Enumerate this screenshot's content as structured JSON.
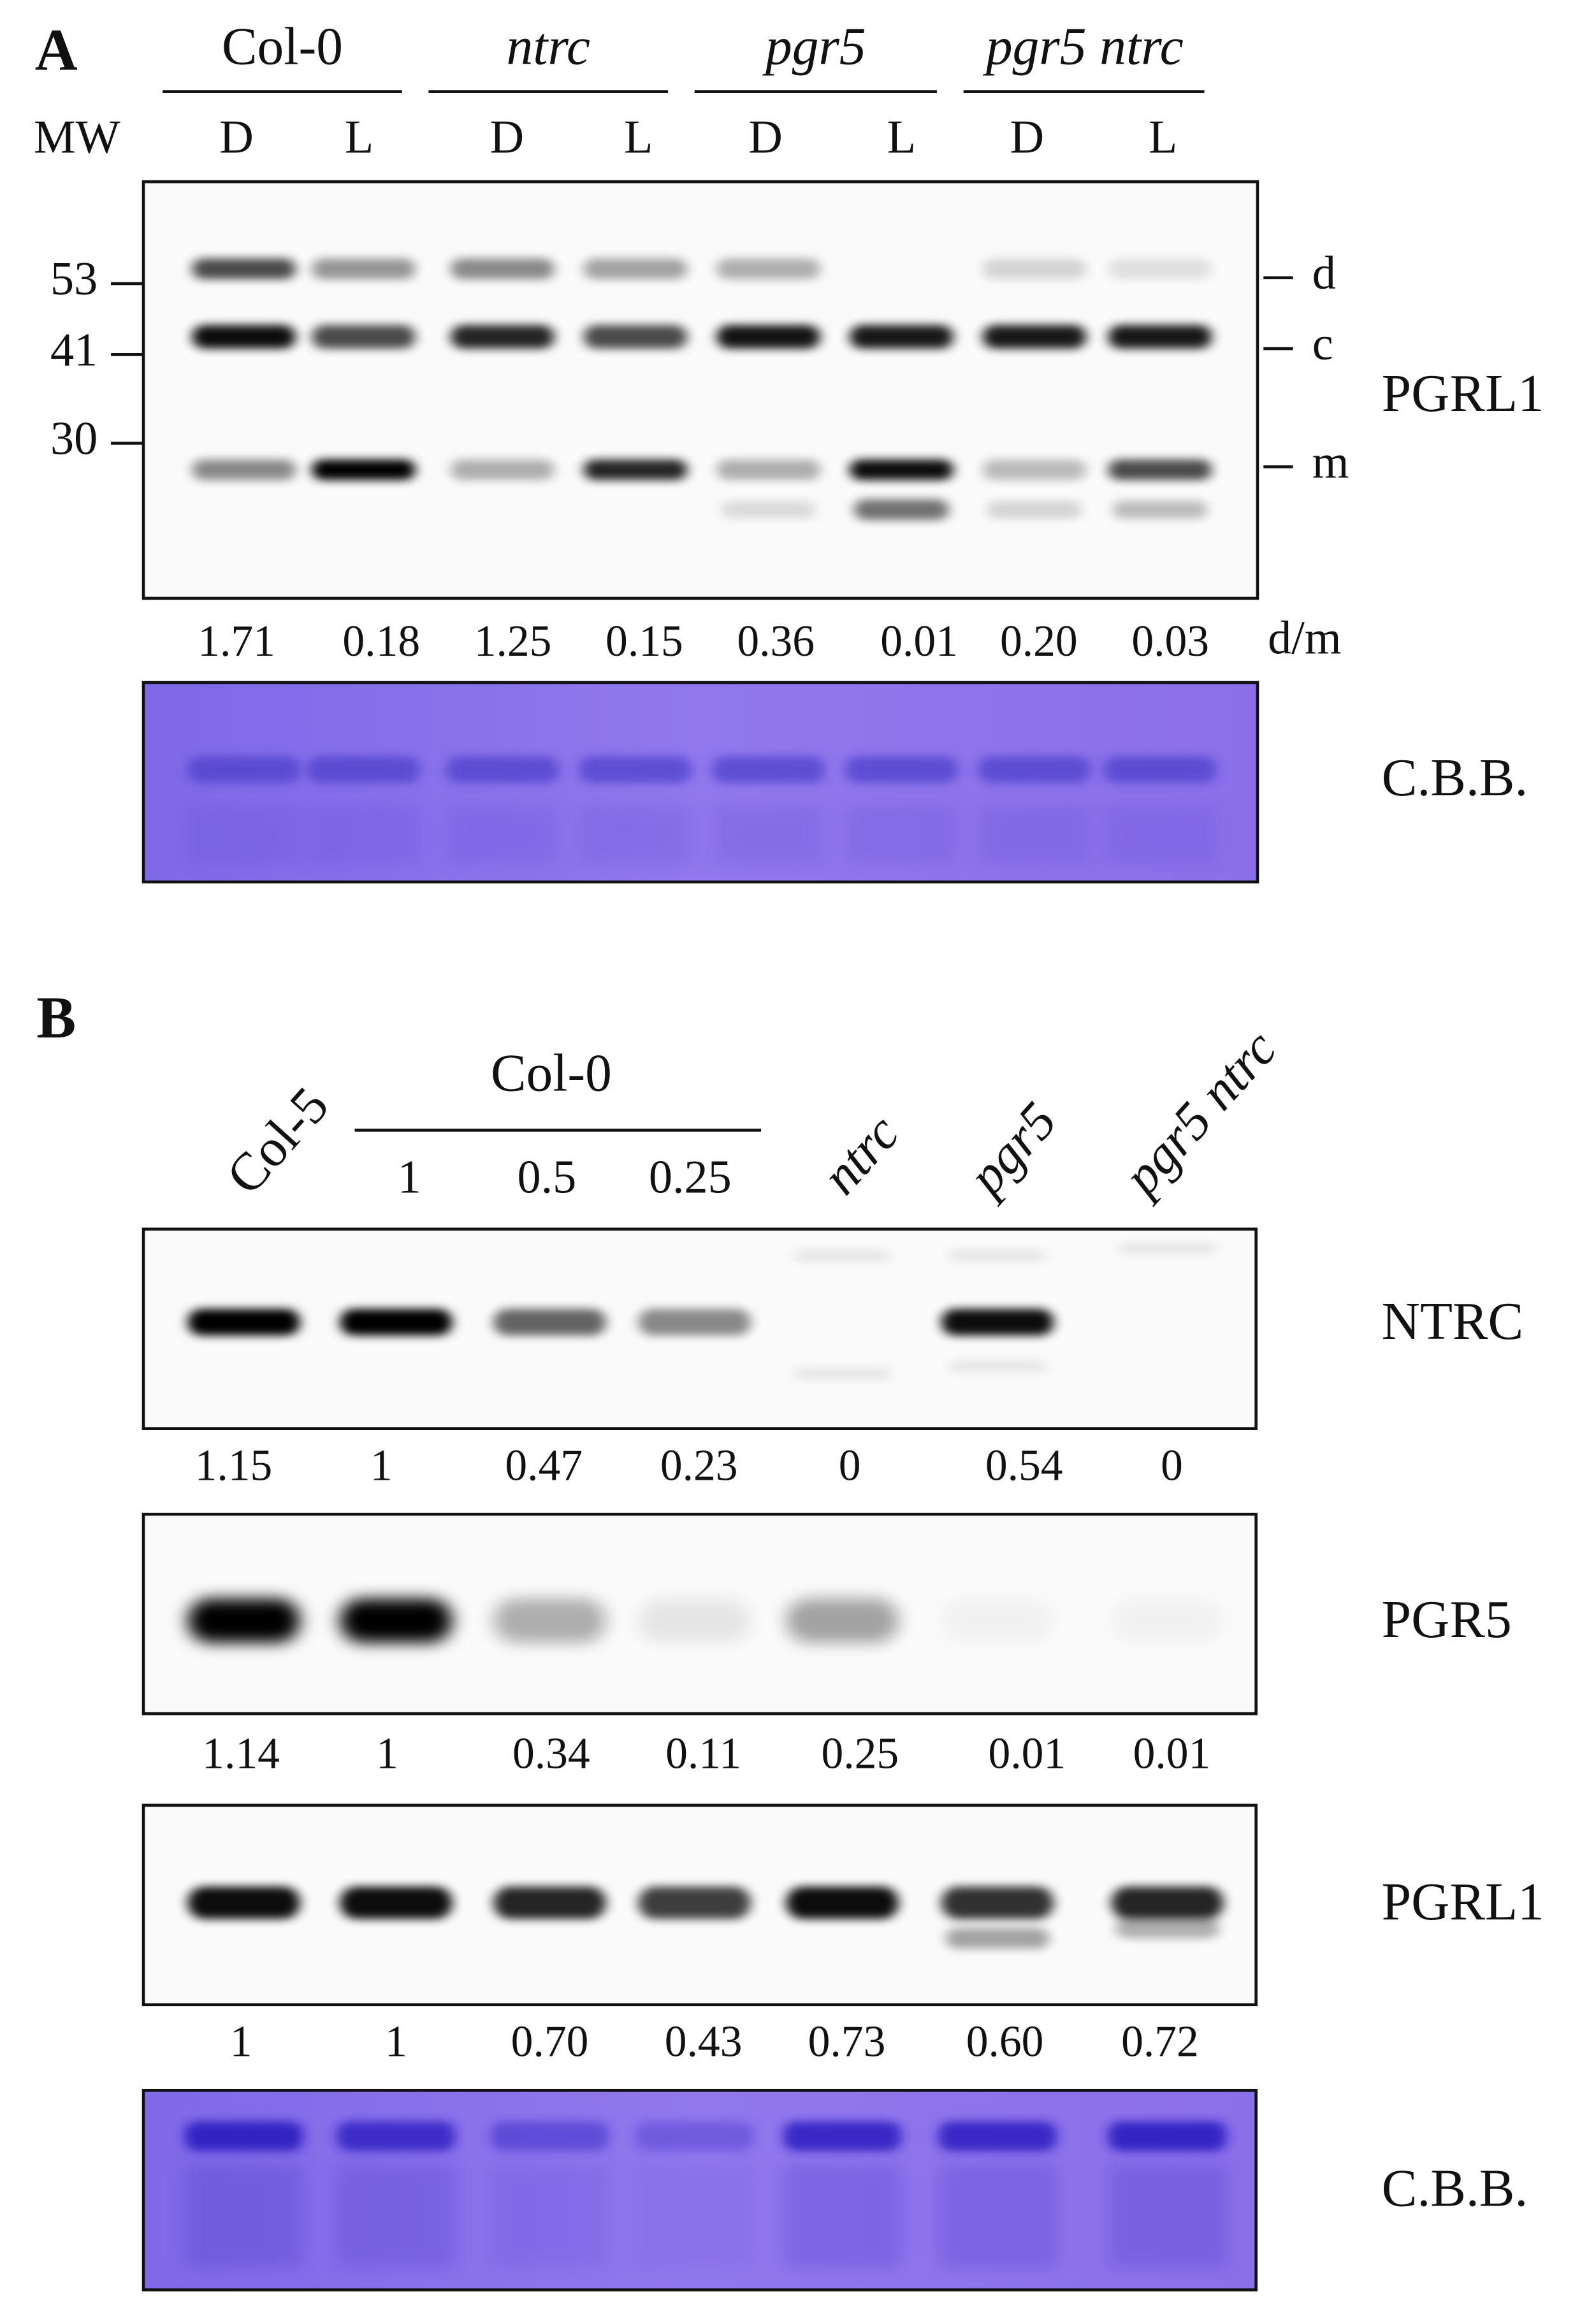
{
  "panel_a": {
    "label": "A",
    "groups": [
      "Col-0",
      "ntrc",
      "pgr5",
      "pgr5 ntrc"
    ],
    "mw_label": "MW",
    "lanes": [
      "D",
      "L",
      "D",
      "L",
      "D",
      "L",
      "D",
      "L"
    ],
    "mw_markers": [
      "53",
      "41",
      "30"
    ],
    "band_labels": [
      "d",
      "c",
      "m"
    ],
    "blot_label": "PGRL1",
    "ratio_label": "d/m",
    "ratios": [
      "1.71",
      "0.18",
      "1.25",
      "0.15",
      "0.36",
      "0.01",
      "0.20",
      "0.03"
    ],
    "stain_label": "C.B.B."
  },
  "panel_b": {
    "label": "B",
    "lanes": [
      "Col-5",
      "1",
      "0.5",
      "0.25",
      "ntrc",
      "pgr5",
      "pgr5 ntrc"
    ],
    "dilution_group": "Col-0",
    "blots": [
      {
        "label": "NTRC",
        "values": [
          "1.15",
          "1",
          "0.47",
          "0.23",
          "0",
          "0.54",
          "0"
        ]
      },
      {
        "label": "PGR5",
        "values": [
          "1.14",
          "1",
          "0.34",
          "0.11",
          "0.25",
          "0.01",
          "0.01"
        ]
      },
      {
        "label": "PGRL1",
        "values": [
          "1",
          "1",
          "0.70",
          "0.43",
          "0.73",
          "0.60",
          "0.72"
        ]
      }
    ],
    "stain_label": "C.B.B."
  }
}
